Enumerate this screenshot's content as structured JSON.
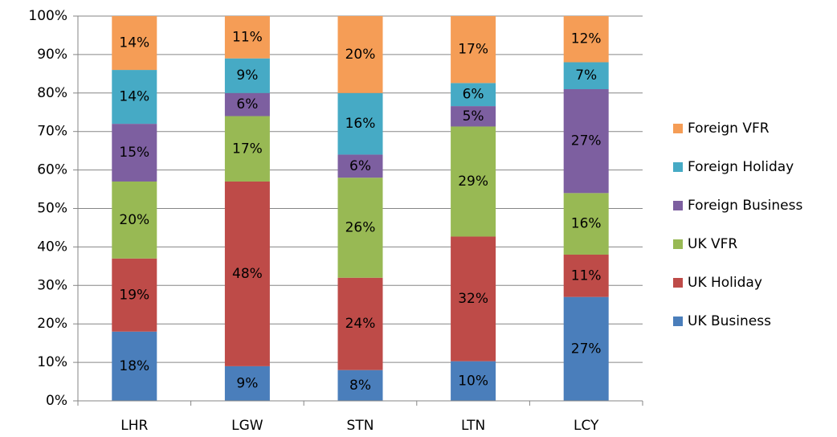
{
  "chart_data": {
    "type": "stacked_bar",
    "categories": [
      "LHR",
      "LGW",
      "STN",
      "LTN",
      "LCY"
    ],
    "series": [
      {
        "name": "UK Business",
        "color": "#4a7ebb",
        "values": [
          18,
          9,
          8,
          10.3,
          27
        ],
        "value_labels": [
          "18%",
          "9%",
          "8%",
          "10%",
          "27%"
        ]
      },
      {
        "name": "UK Holiday",
        "color": "#be4b48",
        "values": [
          19,
          48,
          24,
          32.4,
          11
        ],
        "value_labels": [
          "19%",
          "48%",
          "24%",
          "32%",
          "11%"
        ]
      },
      {
        "name": "UK VFR",
        "color": "#98b954",
        "values": [
          20,
          17,
          26,
          28.6,
          16
        ],
        "value_labels": [
          "20%",
          "17%",
          "26%",
          "29%",
          "16%"
        ]
      },
      {
        "name": "Foreign Business",
        "color": "#7d5fa0",
        "values": [
          15,
          6,
          6,
          5.3,
          27
        ],
        "value_labels": [
          "15%",
          "6%",
          "6%",
          "5%",
          "27%"
        ]
      },
      {
        "name": "Foreign Holiday",
        "color": "#46aac5",
        "values": [
          14,
          9,
          16,
          6.0,
          7
        ],
        "value_labels": [
          "14%",
          "9%",
          "16%",
          "6%",
          "7%"
        ]
      },
      {
        "name": "Foreign VFR",
        "color": "#f59d56",
        "values": [
          14,
          11,
          20,
          17.4,
          12
        ],
        "value_labels": [
          "14%",
          "11%",
          "20%",
          "17%",
          "12%"
        ]
      }
    ],
    "ylim": [
      0,
      100
    ],
    "yticks": [
      {
        "value": 0,
        "label": "0%"
      },
      {
        "value": 10,
        "label": "10%"
      },
      {
        "value": 20,
        "label": "20%"
      },
      {
        "value": 30,
        "label": "30%"
      },
      {
        "value": 40,
        "label": "40%"
      },
      {
        "value": 50,
        "label": "50%"
      },
      {
        "value": 60,
        "label": "60%"
      },
      {
        "value": 70,
        "label": "70%"
      },
      {
        "value": 80,
        "label": "80%"
      },
      {
        "value": 90,
        "label": "90%"
      },
      {
        "value": 100,
        "label": "100%"
      }
    ],
    "grid": true,
    "legend": "right"
  }
}
